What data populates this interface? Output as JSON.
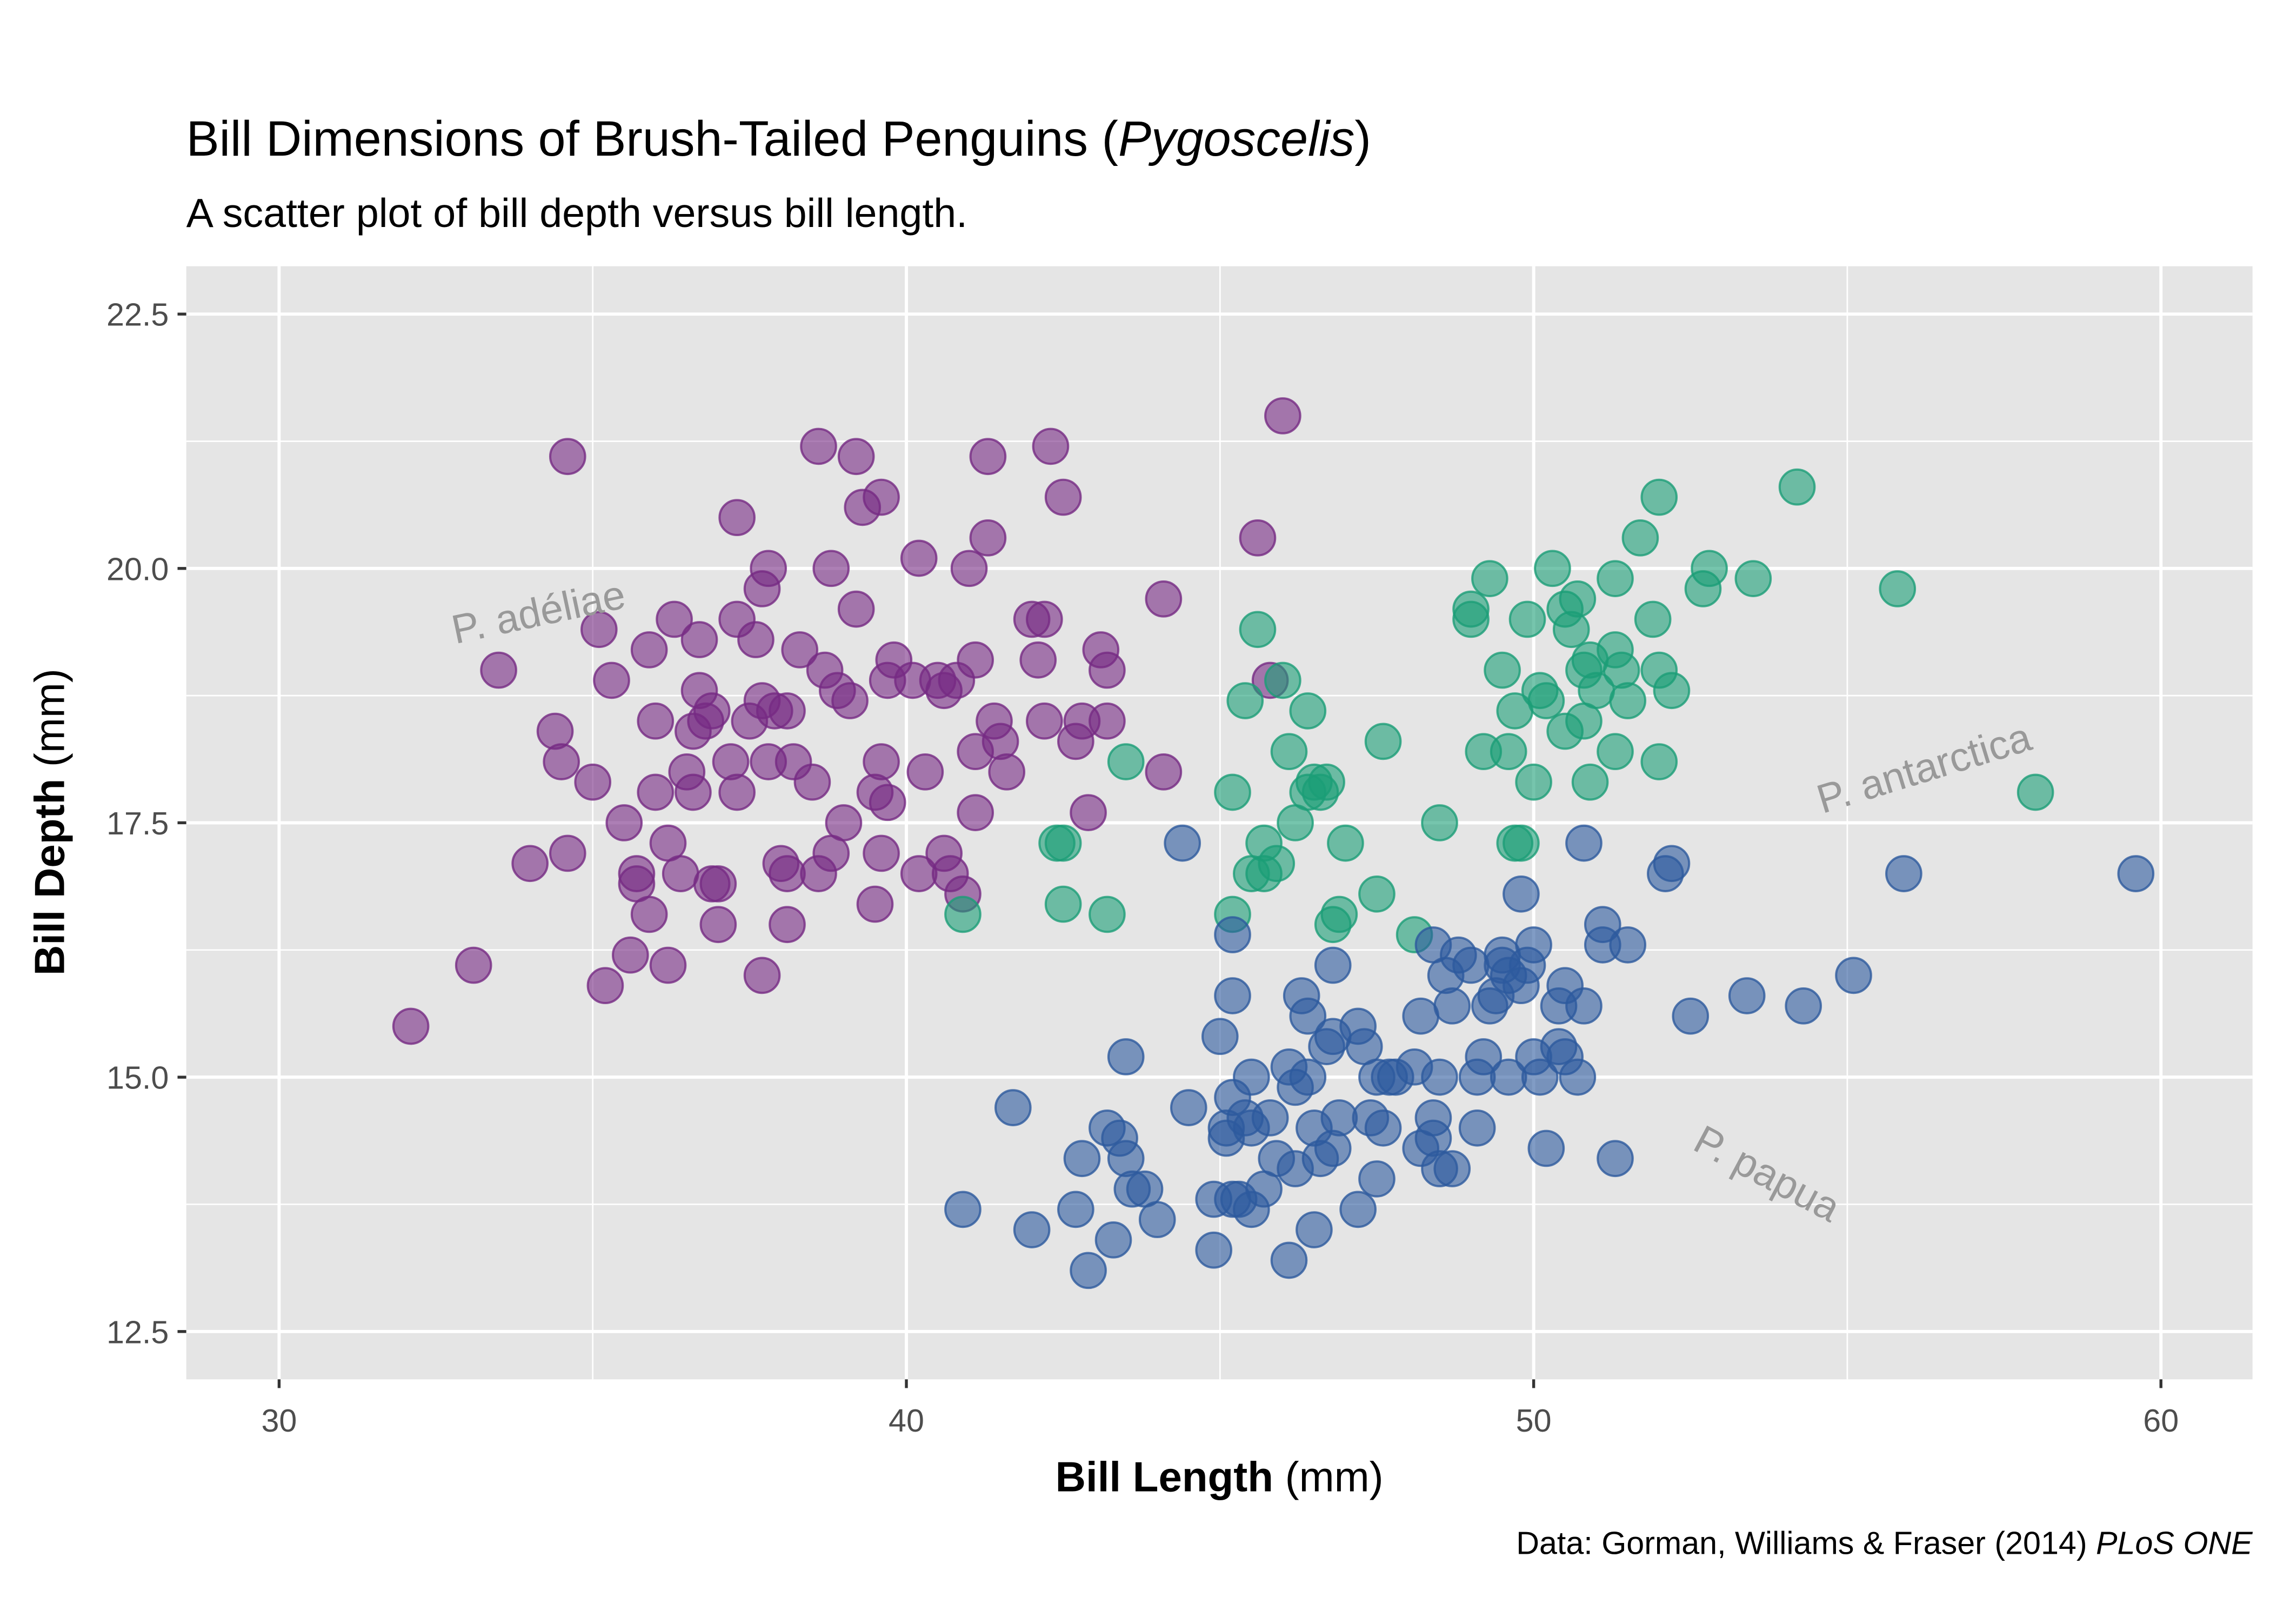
{
  "chart_data": {
    "type": "scatter",
    "title": [
      "Bill Dimensions of Brush-Tailed Penguins (",
      "Pygoscelis",
      ")"
    ],
    "subtitle": "A scatter plot of bill depth versus bill length.",
    "x_label": [
      "Bill Length",
      " (mm)"
    ],
    "y_label": [
      "Bill Depth",
      " (mm)"
    ],
    "caption": [
      "Data: Gorman, Williams & Fraser (2014) ",
      "PLoS ONE"
    ],
    "annotations": [
      "P. adéliae",
      "P. antarctica",
      "P. papua"
    ],
    "xlim": [
      28.52,
      61.46
    ],
    "ylim": [
      12.03,
      22.97
    ],
    "xticks": [
      30,
      40,
      50,
      60
    ],
    "yticks": [
      12.5,
      {
        "value": 15,
        "label": "15.0"
      },
      17.5,
      {
        "value": 20,
        "label": "20.0"
      },
      22.5
    ],
    "xminor": [
      35,
      45,
      55
    ],
    "yminor": [
      13.75,
      16.25,
      18.75,
      21.25
    ],
    "grid": true,
    "opacity": 0.6,
    "series": [
      {
        "color": "#762A83",
        "x": [
          32.1,
          33.1,
          33.5,
          34.4,
          34.5,
          34.6,
          34.6,
          35.0,
          35.1,
          35.2,
          35.3,
          35.5,
          35.6,
          35.7,
          35.9,
          35.9,
          36.0,
          36.0,
          36.2,
          36.2,
          36.3,
          36.4,
          36.5,
          36.6,
          36.7,
          36.7,
          36.8,
          36.9,
          37.0,
          37.2,
          37.3,
          37.3,
          37.3,
          37.5,
          37.6,
          37.7,
          37.7,
          37.7,
          37.8,
          37.8,
          37.9,
          38.1,
          38.1,
          38.2,
          38.3,
          38.5,
          38.6,
          38.6,
          38.7,
          38.8,
          38.8,
          38.9,
          39.0,
          39.1,
          39.2,
          39.2,
          39.3,
          39.5,
          39.5,
          39.6,
          39.6,
          39.6,
          39.7,
          39.8,
          40.2,
          40.2,
          40.3,
          40.5,
          40.6,
          40.6,
          40.7,
          40.8,
          40.9,
          41.0,
          41.1,
          41.1,
          41.1,
          41.3,
          41.3,
          41.4,
          41.5,
          41.6,
          42.0,
          42.1,
          42.2,
          42.2,
          42.3,
          42.5,
          42.7,
          42.8,
          42.9,
          43.1,
          43.2,
          43.2,
          44.1,
          44.1,
          45.6,
          46.0,
          45.8,
          37.0,
          39.7,
          40.1,
          35.7,
          36.6,
          38.0,
          36.9,
          34.0,
          38.1
        ],
        "y": [
          15.5,
          16.1,
          19.0,
          18.4,
          18.1,
          21.1,
          17.2,
          17.9,
          19.4,
          15.9,
          18.9,
          17.5,
          16.2,
          17.0,
          16.6,
          19.2,
          17.8,
          18.5,
          16.1,
          17.3,
          19.5,
          17.0,
          18.0,
          17.8,
          18.8,
          19.3,
          18.5,
          16.9,
          16.5,
          18.1,
          19.5,
          17.8,
          20.5,
          18.5,
          19.3,
          16.0,
          18.7,
          19.8,
          18.1,
          20.0,
          18.6,
          17.0,
          16.5,
          18.1,
          19.2,
          17.9,
          17.0,
          21.2,
          19.0,
          17.2,
          20.0,
          18.8,
          17.5,
          18.7,
          21.1,
          19.6,
          20.6,
          16.7,
          17.8,
          17.2,
          18.1,
          20.7,
          18.9,
          19.1,
          17.0,
          20.1,
          18.0,
          18.9,
          17.2,
          18.8,
          17.0,
          18.9,
          16.8,
          20.0,
          18.2,
          19.1,
          17.6,
          20.3,
          21.1,
          18.5,
          18.3,
          18.0,
          19.5,
          19.1,
          18.5,
          19.5,
          21.2,
          20.7,
          18.3,
          18.5,
          17.6,
          19.2,
          19.0,
          18.5,
          19.7,
          18.0,
          20.3,
          21.5,
          18.9,
          16.9,
          17.7,
          18.9,
          16.9,
          18.4,
          17.1,
          18.6,
          17.1,
          18.6
        ]
      },
      {
        "color": "#1B9E77",
        "x": [
          40.9,
          42.4,
          42.5,
          42.5,
          43.2,
          43.5,
          45.2,
          45.2,
          45.4,
          45.5,
          45.6,
          45.7,
          45.7,
          45.9,
          46.0,
          46.1,
          46.2,
          46.4,
          46.5,
          46.6,
          46.7,
          46.8,
          46.9,
          47.0,
          47.5,
          47.6,
          48.1,
          48.5,
          49.0,
          49.0,
          49.2,
          49.3,
          49.5,
          49.6,
          49.7,
          49.7,
          49.8,
          49.9,
          50.0,
          50.1,
          50.2,
          50.3,
          50.5,
          50.5,
          50.6,
          50.7,
          50.8,
          50.8,
          50.9,
          50.9,
          51.0,
          51.3,
          51.3,
          51.3,
          51.4,
          51.5,
          51.7,
          51.9,
          52.0,
          52.0,
          52.0,
          52.2,
          52.7,
          52.8,
          53.5,
          54.2,
          55.8,
          58.0,
          46.4
        ],
        "y": [
          16.6,
          17.3,
          16.7,
          17.3,
          16.6,
          18.1,
          17.8,
          16.6,
          18.7,
          17.0,
          19.4,
          17.3,
          17.0,
          17.1,
          18.9,
          18.2,
          17.5,
          17.8,
          17.9,
          17.8,
          17.9,
          16.5,
          16.6,
          17.3,
          16.8,
          18.3,
          16.4,
          17.5,
          19.5,
          19.6,
          18.2,
          19.9,
          19.0,
          18.2,
          18.6,
          17.3,
          17.3,
          19.5,
          17.9,
          18.8,
          18.7,
          20.0,
          19.6,
          18.4,
          19.4,
          19.7,
          19.0,
          18.5,
          17.9,
          19.1,
          18.8,
          19.9,
          18.2,
          19.2,
          19.0,
          18.7,
          20.3,
          19.5,
          18.1,
          20.7,
          19.0,
          18.8,
          19.8,
          20.0,
          19.9,
          20.8,
          19.8,
          17.8,
          18.6
        ]
      },
      {
        "color": "#2D5A9E",
        "x": [
          40.9,
          41.7,
          42.0,
          42.7,
          42.8,
          42.9,
          43.2,
          43.3,
          43.4,
          43.5,
          43.5,
          43.6,
          43.8,
          44.0,
          44.4,
          44.5,
          44.9,
          44.9,
          45.0,
          45.1,
          45.1,
          45.2,
          45.2,
          45.2,
          45.2,
          45.3,
          45.4,
          45.5,
          45.5,
          45.5,
          45.7,
          45.8,
          45.9,
          46.1,
          46.1,
          46.2,
          46.2,
          46.3,
          46.4,
          46.4,
          46.5,
          46.5,
          46.6,
          46.7,
          46.8,
          46.8,
          46.8,
          46.9,
          47.2,
          47.2,
          47.3,
          47.4,
          47.5,
          47.5,
          47.6,
          47.7,
          47.8,
          48.1,
          48.2,
          48.2,
          48.4,
          48.4,
          48.5,
          48.5,
          48.6,
          48.7,
          48.7,
          48.8,
          49.0,
          49.1,
          49.1,
          49.2,
          49.3,
          49.4,
          49.5,
          49.5,
          49.6,
          49.6,
          49.8,
          49.8,
          49.9,
          50.0,
          50.0,
          50.1,
          50.2,
          50.4,
          50.5,
          50.5,
          50.7,
          50.8,
          50.8,
          51.1,
          51.1,
          51.3,
          51.5,
          52.1,
          52.2,
          52.5,
          53.4,
          54.3,
          55.1,
          55.9,
          59.6,
          50.4,
          48.4
        ],
        "y": [
          13.7,
          14.7,
          13.5,
          13.7,
          14.2,
          13.1,
          14.5,
          13.4,
          14.4,
          14.2,
          15.2,
          13.9,
          13.9,
          13.6,
          17.3,
          14.7,
          13.8,
          13.3,
          15.4,
          14.5,
          14.4,
          14.8,
          13.8,
          15.8,
          16.4,
          13.8,
          14.6,
          13.7,
          14.5,
          15.0,
          13.9,
          14.6,
          14.2,
          13.2,
          15.1,
          14.1,
          14.9,
          15.8,
          15.6,
          15.0,
          14.5,
          13.5,
          14.2,
          15.3,
          14.3,
          15.4,
          16.1,
          14.6,
          13.7,
          15.5,
          15.3,
          14.6,
          14.0,
          15.0,
          14.5,
          15.0,
          15.0,
          15.1,
          14.3,
          15.6,
          14.6,
          16.3,
          14.1,
          15.0,
          16.0,
          14.1,
          15.7,
          16.2,
          16.1,
          14.5,
          15.0,
          15.2,
          15.7,
          15.8,
          16.2,
          16.1,
          15.0,
          16.0,
          15.9,
          16.8,
          16.1,
          15.2,
          16.3,
          15.0,
          14.3,
          15.7,
          15.9,
          15.2,
          15.0,
          15.7,
          17.3,
          16.3,
          16.5,
          14.2,
          16.3,
          17.0,
          17.1,
          15.6,
          15.8,
          15.7,
          16.0,
          17.0,
          17.0,
          15.3,
          14.4
        ]
      }
    ]
  }
}
